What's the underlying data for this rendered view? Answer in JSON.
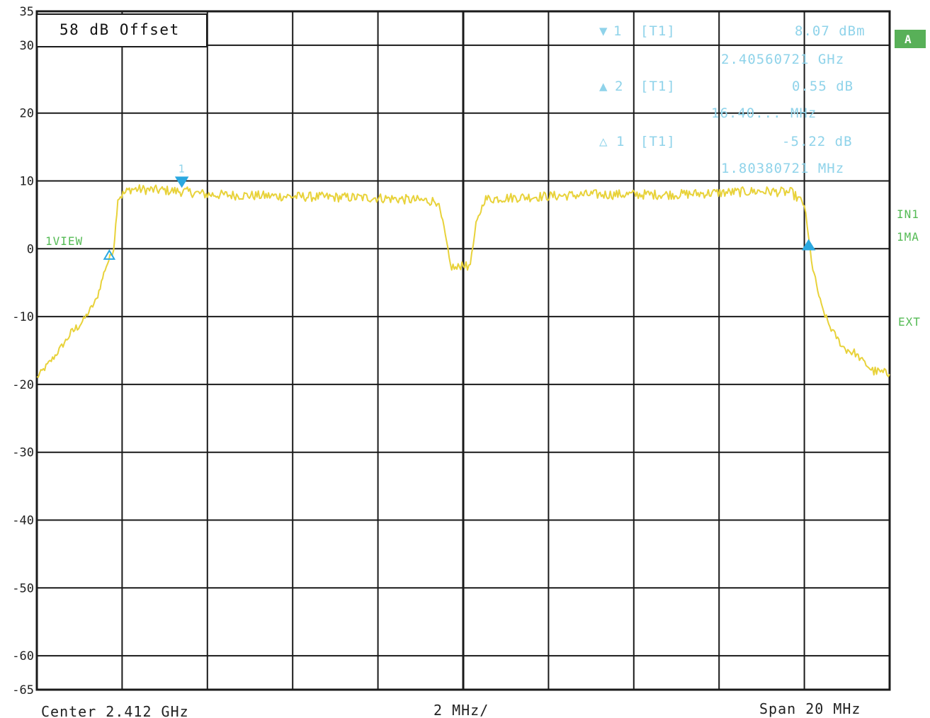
{
  "chart_data": {
    "type": "line",
    "offset_label": "58 dB Offset",
    "x_axis": {
      "center_label": "Center 2.412 GHz",
      "scale_label": "2 MHz/",
      "span_label": "Span 20 MHz",
      "range_mhz": [
        -10,
        10
      ],
      "div_mhz": 2
    },
    "y_axis": {
      "ticks": [
        {
          "value": 35,
          "label": "35"
        },
        {
          "value": 30,
          "label": "30"
        },
        {
          "value": 20,
          "label": "20"
        },
        {
          "value": 10,
          "label": "10"
        },
        {
          "value": 0,
          "label": "0"
        },
        {
          "value": -10,
          "label": "-10"
        },
        {
          "value": -20,
          "label": "-20"
        },
        {
          "value": -30,
          "label": "-30"
        },
        {
          "value": -40,
          "label": "-40"
        },
        {
          "value": -50,
          "label": "-50"
        },
        {
          "value": -60,
          "label": "-60"
        },
        {
          "value": -65,
          "label": "-65"
        }
      ],
      "range": [
        -65,
        35
      ],
      "grid_lines": [
        30,
        20,
        10,
        0,
        -10,
        -20,
        -30,
        -40,
        -50,
        -60
      ]
    },
    "grid": true,
    "trace_color": "#e8d23a",
    "grid_color": "#1a1a1a",
    "series": [
      {
        "x": [
          -10,
          -9.6,
          -9.2,
          -8.9,
          -8.6,
          -8.4,
          -8.2,
          -8.15,
          -8.1,
          -7.8,
          -7.0,
          -6.5,
          -6.0,
          -4.0,
          -2.0,
          -0.6,
          -0.45,
          -0.3,
          -0.15,
          0,
          0.1,
          0.2,
          0.3,
          0.5,
          1.0,
          3.0,
          5.0,
          7.0,
          7.7,
          8.0,
          8.1,
          8.2,
          8.4,
          8.6,
          8.9,
          9.2,
          9.6,
          10
        ],
        "y": [
          -19,
          -16,
          -12.5,
          -10.5,
          -7.5,
          -3,
          0,
          3.5,
          7.5,
          8.8,
          8.6,
          8.4,
          8.0,
          7.7,
          7.5,
          7.0,
          3,
          -2.5,
          -3,
          -2,
          -3,
          -1,
          3.5,
          7.3,
          7.5,
          8.0,
          8.0,
          8.5,
          8.3,
          6.5,
          1.5,
          -3,
          -8.5,
          -11.5,
          -14.5,
          -15.5,
          -18,
          -18.5
        ]
      }
    ],
    "markers": [
      {
        "x": -6.6,
        "y": 9.8,
        "label": "1",
        "shape": "filled-down"
      },
      {
        "x": -8.3,
        "y": -0.9,
        "label": "",
        "shape": "open-up"
      },
      {
        "x": 8.1,
        "y": 0.5,
        "label": "",
        "shape": "filled-up"
      }
    ],
    "marker_readouts": [
      {
        "symbol": "▼",
        "id": "1",
        "tag": "[T1]",
        "value": "8.07 dBm",
        "freq": "2.40560721 GHz"
      },
      {
        "symbol": "▲",
        "id": "2",
        "tag": "[T1]",
        "value": "0.55 dB",
        "freq": "16.40... MHz"
      },
      {
        "symbol": "△",
        "id": "1",
        "tag": "[T1]",
        "value": "-5.22 dB",
        "freq": "1.80380721 MHz"
      }
    ],
    "side_labels": {
      "view": "1VIEW",
      "in": "IN1",
      "ma": "1MA",
      "ext": "EXT",
      "badge": "A"
    },
    "badge_color": "#58b058"
  }
}
